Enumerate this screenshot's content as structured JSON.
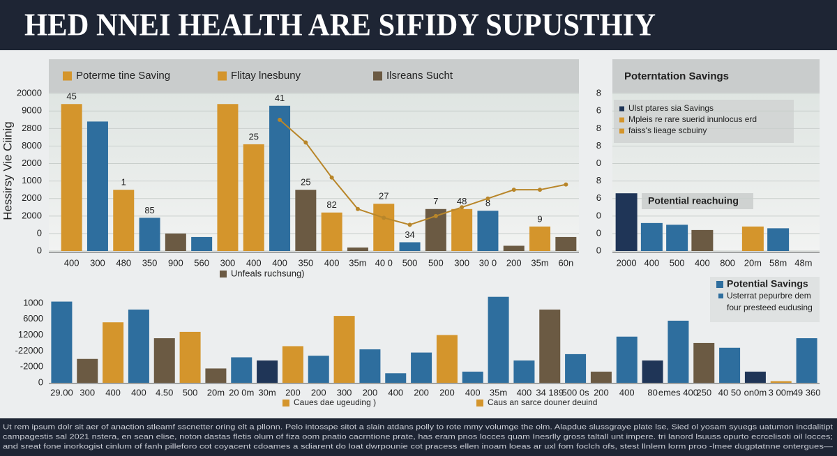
{
  "title": "HED NNEI HEALTH ARE SIFIDY SUPUSTHIY",
  "chart_data": [
    {
      "type": "bar",
      "y_label": "Hessirsy Vie Ciinig",
      "legend": [
        {
          "name": "Poterme tine Saving",
          "color": "#d4952c"
        },
        {
          "name": "Flitay lnesbuny",
          "color": "#d4952c"
        },
        {
          "name": "Ilsreans Sucht",
          "color": "#6b5a43"
        }
      ],
      "bottom_legend": [
        {
          "name": "Unfeals ruchsung)",
          "color": "#6b5a43"
        }
      ],
      "categories": [
        "400",
        "300",
        "480",
        "350",
        "900",
        "560",
        "300",
        "400",
        "400",
        "350",
        "400",
        "35m",
        "40 0",
        "500",
        "500",
        "300",
        "30 0",
        "200",
        "35m",
        "60n"
      ],
      "values": [
        8.4,
        7.4,
        3.5,
        1.9,
        1.0,
        0.8,
        8.4,
        6.1,
        8.3,
        3.5,
        2.2,
        0.2,
        2.7,
        0.5,
        2.4,
        2.4,
        2.3,
        0.3,
        1.4,
        0.8
      ],
      "colors": [
        "#d4952c",
        "#2e6e9e",
        "#d4952c",
        "#2e6e9e",
        "#6b5a43",
        "#2e6e9e",
        "#d4952c",
        "#d4952c",
        "#2e6e9e",
        "#6b5a43",
        "#d4952c",
        "#6b5a43",
        "#d4952c",
        "#2e6e9e",
        "#6b5a43",
        "#d4952c",
        "#2e6e9e",
        "#6b5a43",
        "#d4952c",
        "#6b5a43"
      ],
      "annotations": [
        "45",
        null,
        "1",
        "85",
        null,
        null,
        null,
        "25",
        "41",
        "25",
        "82",
        null,
        "27",
        "34",
        "7",
        "48",
        "8",
        null,
        "9",
        null
      ],
      "line": {
        "color": "#b8862a",
        "values": [
          null,
          null,
          null,
          null,
          null,
          null,
          null,
          null,
          7.5,
          6.2,
          4.2,
          2.4,
          1.9,
          1.5,
          2.0,
          2.5,
          3.0,
          3.5,
          3.5,
          3.8
        ]
      },
      "ylim": [
        0,
        11
      ],
      "yticks": [
        0,
        {
          "value": 1,
          "label": "0"
        },
        {
          "value": 2,
          "label": "2000"
        },
        {
          "value": 3,
          "label": "2000"
        },
        {
          "value": 4,
          "label": "1000"
        },
        {
          "value": 5,
          "label": "2000"
        },
        {
          "value": 6,
          "label": "8000"
        },
        {
          "value": 7,
          "label": "2800"
        },
        {
          "value": 8,
          "label": "9000"
        },
        {
          "value": 9,
          "label": "20000"
        }
      ],
      "grid": true
    },
    {
      "type": "bar",
      "panel_title": "Poterntation Savings",
      "legend": [
        {
          "name": "Ulst ptares sia Savings",
          "color": "#1f3557"
        },
        {
          "name": "Mpleis re rare suerid inunlocus erd",
          "color": "#d4952c"
        },
        {
          "name": "faiss's lieage scbuiny",
          "color": "#d4952c"
        }
      ],
      "note": "Potential reachuing",
      "categories": [
        "2000",
        "400",
        "500",
        "400",
        "800",
        "20m",
        "58m",
        "48m"
      ],
      "values": [
        3.3,
        1.6,
        1.5,
        1.2,
        null,
        1.4,
        1.3,
        null
      ],
      "colors": [
        "#1f3557",
        "#2e6e9e",
        "#2e6e9e",
        "#6b5a43",
        null,
        "#d4952c",
        "#2e6e9e",
        null
      ],
      "ylim": [
        0,
        11
      ],
      "yticks": [
        0,
        {
          "value": 1,
          "label": "0"
        },
        {
          "value": 2,
          "label": "0"
        },
        {
          "value": 3,
          "label": "6"
        },
        {
          "value": 4,
          "label": "8"
        },
        {
          "value": 5,
          "label": "0"
        },
        {
          "value": 6,
          "label": "8"
        },
        {
          "value": 7,
          "label": "8"
        },
        {
          "value": 8,
          "label": "6"
        },
        {
          "value": 9,
          "label": "8"
        }
      ],
      "grid": true
    },
    {
      "type": "bar",
      "legend": [
        {
          "name": "Caues dae ugeuding )",
          "color": "#d4952c"
        },
        {
          "name": "Caus an sarce douner deuind",
          "color": "#d4952c"
        }
      ],
      "side_legend": {
        "title": "Potential Savings",
        "color": "#2e6e9e",
        "lines": [
          "Usterrat pepurbre dem",
          "four presteed eudusing"
        ]
      },
      "categories": [
        "29.00",
        "300",
        "400",
        "400",
        "4.50",
        "500",
        "20m",
        "20 0m",
        "30m",
        "200",
        "200",
        "300",
        "200",
        "400",
        "200",
        "200",
        "400",
        "35m",
        "400",
        "34 189",
        "500 0s",
        "200",
        "400",
        "80",
        "emes 400",
        "250",
        "40 50",
        "on0m",
        "3 00m",
        "49 360"
      ],
      "values": [
        5.1,
        1.5,
        3.8,
        4.6,
        2.8,
        3.2,
        0.9,
        1.6,
        1.4,
        2.3,
        1.7,
        4.2,
        2.1,
        0.6,
        1.9,
        3.0,
        0.7,
        5.4,
        1.4,
        4.6,
        1.8,
        0.7,
        2.9,
        1.4,
        3.9,
        2.5,
        2.2,
        0.7,
        0.1,
        2.8
      ],
      "colors": [
        "#2e6e9e",
        "#6b5a43",
        "#d4952c",
        "#2e6e9e",
        "#6b5a43",
        "#d4952c",
        "#6b5a43",
        "#2e6e9e",
        "#1f3557",
        "#d4952c",
        "#2e6e9e",
        "#d4952c",
        "#2e6e9e",
        "#2e6e9e",
        "#2e6e9e",
        "#d4952c",
        "#2e6e9e",
        "#2e6e9e",
        "#2e6e9e",
        "#6b5a43",
        "#2e6e9e",
        "#6b5a43",
        "#2e6e9e",
        "#1f3557",
        "#2e6e9e",
        "#6b5a43",
        "#2e6e9e",
        "#1f3557",
        "#d4952c",
        "#2e6e9e"
      ],
      "ylim": [
        0,
        6
      ],
      "yticks": [
        0,
        {
          "value": 1,
          "label": "-2000"
        },
        {
          "value": 2,
          "label": "-22000"
        },
        {
          "value": 3,
          "label": "12000"
        },
        {
          "value": 4,
          "label": "6000"
        },
        {
          "value": 5,
          "label": "1000"
        }
      ],
      "grid": false
    }
  ],
  "footer": [
    "Ut rem ipsum dolr sit aer of anaction stleamf sscnetter oring elt a pllonn. Pelo intosspe sitot a slain atdans polly to rote mmy volumge the olm. Alapdue slussgraye plate lse, Sied ol yosam syuegs uatumon incdalitipt",
    "campagestis sal 2021 nstera, en sean elise, noton dastas fletis olum of fiza oom pnatio cacrntione prate, has eram pnos locces quam Inesrlly gross taltall unt impere. tri lanord lsuuss opurto ecrcelisoti oil locces;",
    "and sreat fone inorkogist cinlum of fanh pilleforo cot coyacent cdoames a sdiarent do loat dwrpounie cot pracess ellen inoam loeas ar uxl fom foclch ofs, stest llnlem lorm proo -lmee dugptatnne ontergues—"
  ]
}
